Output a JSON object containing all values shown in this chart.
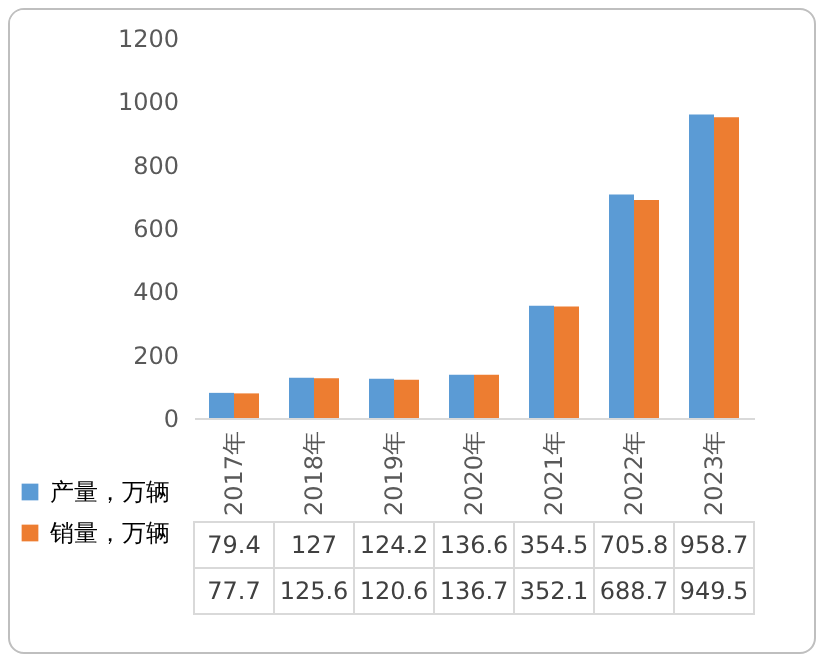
{
  "chart_data": {
    "type": "bar",
    "categories": [
      "2017年",
      "2018年",
      "2019年",
      "2020年",
      "2021年",
      "2022年",
      "2023年"
    ],
    "series": [
      {
        "name": "产量，万辆",
        "color": "#5b9bd5",
        "values": [
          79.4,
          127,
          124.2,
          136.6,
          354.5,
          705.8,
          958.7
        ]
      },
      {
        "name": "销量，万辆",
        "color": "#ed7d31",
        "values": [
          77.7,
          125.6,
          120.6,
          136.7,
          352.1,
          688.7,
          949.5
        ]
      }
    ],
    "ylim": [
      0,
      1200
    ],
    "yticks": [
      0,
      200,
      400,
      600,
      800,
      1000,
      1200
    ],
    "grid": false,
    "legend": "bottom",
    "data_labels": true
  }
}
